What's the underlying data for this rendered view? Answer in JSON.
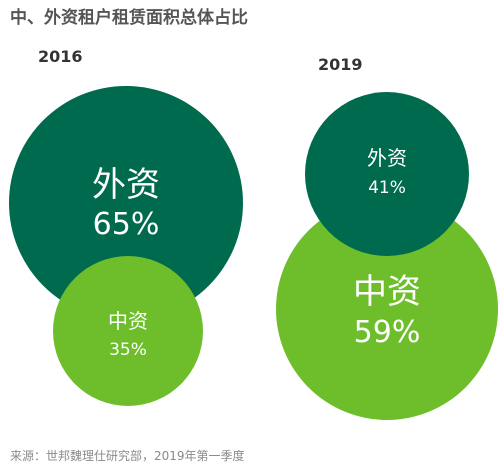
{
  "title": "中、外资租户租赁面积总体占比",
  "source": "来源：世邦魏理仕研究部，2019年第一季度",
  "colors": {
    "foreign": "#006a4e",
    "domestic": "#6ebe2c"
  },
  "chart_data": [
    {
      "type": "bubble",
      "year": "2016",
      "slices": [
        {
          "name": "外资",
          "label": "65%",
          "value": 65
        },
        {
          "name": "中资",
          "label": "35%",
          "value": 35
        }
      ]
    },
    {
      "type": "bubble",
      "year": "2019",
      "slices": [
        {
          "name": "外资",
          "label": "41%",
          "value": 41
        },
        {
          "name": "中资",
          "label": "59%",
          "value": 59
        }
      ]
    }
  ]
}
